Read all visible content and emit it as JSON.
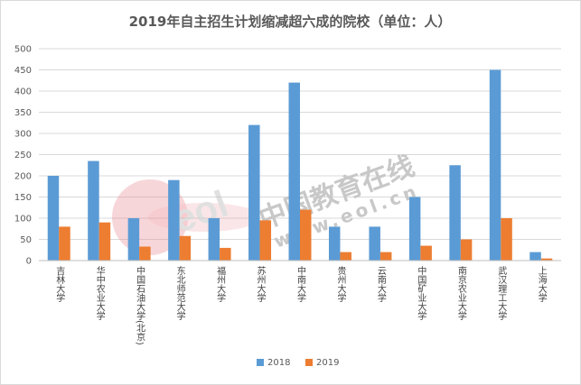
{
  "chart_data": {
    "type": "bar",
    "title": "2019年自主招生计划缩减超六成的院校（单位：人）",
    "categories": [
      "吉林大学",
      "华中农业大学",
      "中国石油大学(北京)",
      "东北师范大学",
      "福州大学",
      "苏州大学",
      "中南大学",
      "贵州大学",
      "云南大学",
      "中国矿业大学",
      "南京农业大学",
      "武汉理工大学",
      "上海大学"
    ],
    "series": [
      {
        "name": "2018",
        "color": "#5b9bd5",
        "values": [
          200,
          235,
          100,
          190,
          100,
          320,
          420,
          80,
          80,
          150,
          225,
          450,
          20
        ]
      },
      {
        "name": "2019",
        "color": "#ed7d31",
        "values": [
          80,
          90,
          33,
          58,
          30,
          95,
          120,
          20,
          20,
          35,
          50,
          100,
          5
        ]
      }
    ],
    "ylim": [
      0,
      500
    ],
    "yticks": [
      0,
      50,
      100,
      150,
      200,
      250,
      300,
      350,
      400,
      450,
      500
    ],
    "grid": true,
    "legend": "bottom"
  },
  "watermark": {
    "text": "中国教育在线",
    "url": "www.eol.cn",
    "logo": "eol"
  }
}
